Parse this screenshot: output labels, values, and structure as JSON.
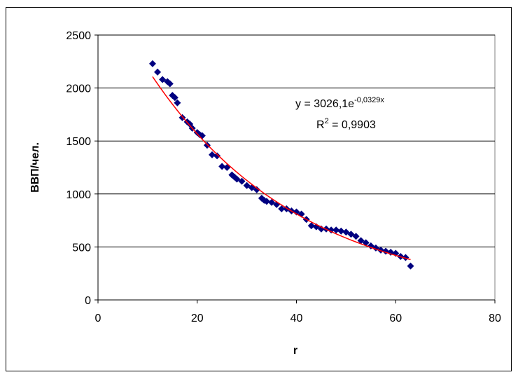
{
  "chart_data": {
    "type": "scatter",
    "xlabel": "r",
    "ylabel": "ВВП/чел.",
    "xlim": [
      0,
      80
    ],
    "ylim": [
      0,
      2500
    ],
    "x_ticks": [
      "0",
      "20",
      "40",
      "60",
      "80"
    ],
    "y_ticks": [
      "0",
      "500",
      "1000",
      "1500",
      "2000",
      "2500"
    ],
    "grid": "horizontal",
    "colors": {
      "points": "#000080",
      "trendline": "#ff0000"
    },
    "points": [
      [
        11,
        2230
      ],
      [
        12,
        2150
      ],
      [
        13,
        2080
      ],
      [
        14,
        2060
      ],
      [
        14.5,
        2040
      ],
      [
        15,
        1930
      ],
      [
        15.5,
        1910
      ],
      [
        16,
        1860
      ],
      [
        17,
        1720
      ],
      [
        18,
        1680
      ],
      [
        18.5,
        1660
      ],
      [
        19,
        1620
      ],
      [
        20,
        1580
      ],
      [
        20.5,
        1560
      ],
      [
        21,
        1550
      ],
      [
        22,
        1460
      ],
      [
        23,
        1370
      ],
      [
        24,
        1360
      ],
      [
        25,
        1260
      ],
      [
        26,
        1250
      ],
      [
        27,
        1180
      ],
      [
        27.5,
        1160
      ],
      [
        28,
        1140
      ],
      [
        29,
        1120
      ],
      [
        30,
        1080
      ],
      [
        31,
        1060
      ],
      [
        32,
        1040
      ],
      [
        33,
        960
      ],
      [
        33.5,
        940
      ],
      [
        34,
        930
      ],
      [
        35,
        920
      ],
      [
        36,
        900
      ],
      [
        37,
        860
      ],
      [
        38,
        860
      ],
      [
        39,
        840
      ],
      [
        40,
        830
      ],
      [
        41,
        810
      ],
      [
        42,
        760
      ],
      [
        43,
        700
      ],
      [
        44,
        690
      ],
      [
        45,
        670
      ],
      [
        46,
        670
      ],
      [
        47,
        660
      ],
      [
        48,
        660
      ],
      [
        49,
        650
      ],
      [
        50,
        640
      ],
      [
        51,
        620
      ],
      [
        52,
        600
      ],
      [
        53,
        560
      ],
      [
        54,
        540
      ],
      [
        55,
        510
      ],
      [
        56,
        490
      ],
      [
        57,
        470
      ],
      [
        58,
        460
      ],
      [
        59,
        450
      ],
      [
        60,
        440
      ],
      [
        61,
        410
      ],
      [
        62,
        400
      ],
      [
        63,
        320
      ]
    ],
    "trendline": {
      "type": "exponential",
      "a": 3026.1,
      "b": -0.0329,
      "x_range": [
        11,
        63
      ],
      "equation_prefix": "y = 3026,1e",
      "equation_exponent": "-0,0329x",
      "r2_prefix": "R",
      "r2_exponent": "2",
      "r2_suffix": " = 0,9903"
    }
  }
}
